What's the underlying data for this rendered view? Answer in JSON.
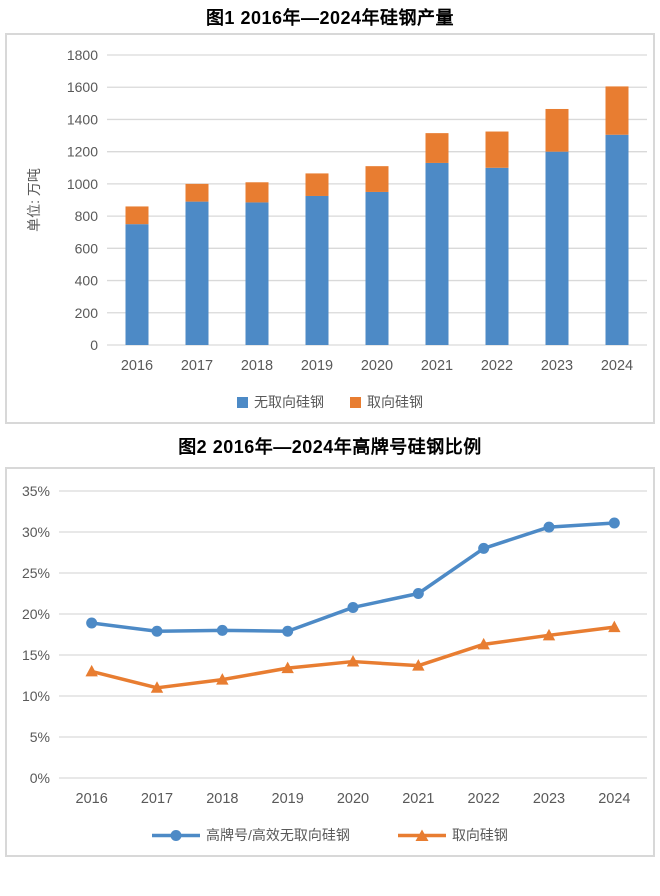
{
  "colors": {
    "blue": "#4D8AC6",
    "orange": "#E87D31",
    "grid": "#D9D9D9",
    "axis_text": "#595959",
    "border": "#D8D8D8",
    "title_text": "#000000"
  },
  "chart_data": [
    {
      "type": "bar",
      "stacked": true,
      "title": "图1 2016年—2024年硅钢产量",
      "y_axis_title": "单位: 万吨",
      "categories": [
        "2016",
        "2017",
        "2018",
        "2019",
        "2020",
        "2021",
        "2022",
        "2023",
        "2024"
      ],
      "series": [
        {
          "name": "无取向硅钢",
          "color_key": "blue",
          "values": [
            750,
            890,
            885,
            925,
            950,
            1130,
            1100,
            1200,
            1305
          ]
        },
        {
          "name": "取向硅钢",
          "color_key": "orange",
          "values": [
            110,
            110,
            125,
            140,
            160,
            185,
            225,
            265,
            300
          ]
        }
      ],
      "ylim": [
        0,
        1800
      ],
      "ytick_step": 200,
      "grid": true,
      "legend_position": "bottom"
    },
    {
      "type": "line",
      "title": "图2 2016年—2024年高牌号硅钢比例",
      "categories": [
        "2016",
        "2017",
        "2018",
        "2019",
        "2020",
        "2021",
        "2022",
        "2023",
        "2024"
      ],
      "series": [
        {
          "name": "高牌号/高效无取向硅钢",
          "color_key": "blue",
          "marker": "circle",
          "values": [
            18.9,
            17.9,
            18.0,
            17.9,
            20.8,
            22.5,
            28.0,
            30.6,
            31.1
          ]
        },
        {
          "name": "取向硅钢",
          "color_key": "orange",
          "marker": "triangle",
          "values": [
            13.0,
            11.0,
            12.0,
            13.4,
            14.2,
            13.7,
            16.3,
            17.4,
            18.4
          ]
        }
      ],
      "ylim": [
        0,
        35
      ],
      "ytick_step": 5,
      "ytick_format": "percent",
      "grid": true,
      "legend_position": "bottom"
    }
  ]
}
